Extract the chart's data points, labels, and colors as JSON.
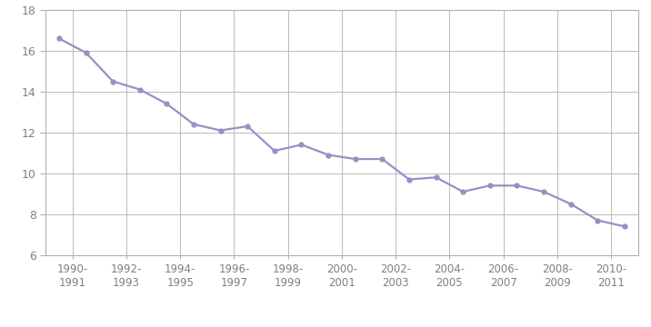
{
  "x_labels": [
    "1990-\n1991",
    "1992-\n1993",
    "1994-\n1995",
    "1996-\n1997",
    "1998-\n1999",
    "2000-\n2001",
    "2002-\n2003",
    "2004-\n2005",
    "2006-\n2007",
    "2008-\n2009",
    "2010-\n2011"
  ],
  "y_values": [
    16.6,
    15.9,
    14.5,
    14.1,
    13.4,
    12.4,
    12.1,
    12.3,
    11.1,
    11.4,
    10.9,
    10.7,
    10.7,
    9.7,
    9.8,
    9.1,
    9.4,
    9.4,
    9.1,
    8.5,
    7.7,
    7.4
  ],
  "x_positions": [
    0,
    1,
    2,
    3,
    4,
    5,
    6,
    7,
    8,
    9,
    10,
    11,
    12,
    13,
    14,
    15,
    16,
    17,
    18,
    19,
    20,
    21
  ],
  "x_tick_positions": [
    0.5,
    2.5,
    4.5,
    6.5,
    8.5,
    10.5,
    12.5,
    14.5,
    16.5,
    18.5,
    20.5
  ],
  "ylim": [
    6,
    18
  ],
  "yticks": [
    6,
    8,
    10,
    12,
    14,
    16,
    18
  ],
  "line_color": "#9B8EC4",
  "marker_color": "#9B8EC4",
  "bg_color": "#ffffff",
  "grid_color": "#b0b0b0",
  "tick_label_color": "#808080",
  "line_width": 1.6,
  "marker_size": 3.5
}
